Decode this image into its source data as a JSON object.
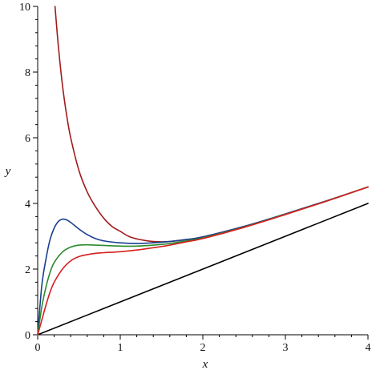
{
  "chart_data": {
    "type": "line",
    "xlabel": "x",
    "ylabel": "y",
    "xlim": [
      0,
      4
    ],
    "ylim": [
      0,
      10
    ],
    "x_ticks": [
      "0",
      "1",
      "2",
      "3",
      "4"
    ],
    "y_ticks": [
      "0",
      "2",
      "4",
      "6",
      "8",
      "10"
    ],
    "grid": false,
    "series": [
      {
        "color": "#000000",
        "x": [
          0,
          1,
          2,
          3,
          4
        ],
        "y": [
          0,
          1,
          2,
          3,
          4
        ]
      },
      {
        "color": "#a01b1b",
        "x": [
          0.21,
          0.25,
          0.3,
          0.35,
          0.4,
          0.5,
          0.6,
          0.7,
          0.8,
          0.9,
          1.0,
          1.1,
          1.2,
          1.3,
          1.4,
          1.5,
          1.6,
          1.8,
          2.0,
          2.5,
          3.0,
          3.5,
          4.0
        ],
        "y": [
          10.0,
          8.8,
          7.6,
          6.7,
          6.0,
          5.0,
          4.35,
          3.9,
          3.55,
          3.3,
          3.15,
          3.0,
          2.92,
          2.87,
          2.84,
          2.83,
          2.84,
          2.9,
          2.98,
          3.3,
          3.68,
          4.08,
          4.5
        ]
      },
      {
        "color": "#1a3f8f",
        "x": [
          0,
          0.05,
          0.1,
          0.15,
          0.2,
          0.25,
          0.3,
          0.35,
          0.4,
          0.5,
          0.6,
          0.7,
          0.8,
          1.0,
          1.2,
          1.4,
          1.6,
          1.8,
          2.0,
          2.5,
          3.0,
          3.5,
          4.0
        ],
        "y": [
          0,
          1.5,
          2.3,
          2.9,
          3.25,
          3.45,
          3.52,
          3.5,
          3.42,
          3.22,
          3.05,
          2.93,
          2.86,
          2.8,
          2.78,
          2.8,
          2.84,
          2.9,
          2.98,
          3.3,
          3.68,
          4.08,
          4.5
        ]
      },
      {
        "color": "#2a8a2a",
        "x": [
          0,
          0.05,
          0.1,
          0.15,
          0.2,
          0.3,
          0.4,
          0.5,
          0.6,
          0.7,
          0.8,
          1.0,
          1.2,
          1.4,
          1.6,
          1.8,
          2.0,
          2.5,
          3.0,
          3.5,
          4.0
        ],
        "y": [
          0,
          0.85,
          1.45,
          1.9,
          2.2,
          2.52,
          2.67,
          2.73,
          2.74,
          2.73,
          2.72,
          2.7,
          2.7,
          2.73,
          2.78,
          2.86,
          2.95,
          3.28,
          3.67,
          4.07,
          4.5
        ]
      },
      {
        "color": "#d42020",
        "x": [
          0,
          0.05,
          0.1,
          0.15,
          0.2,
          0.3,
          0.4,
          0.5,
          0.6,
          0.7,
          0.8,
          1.0,
          1.2,
          1.4,
          1.6,
          1.8,
          2.0,
          2.5,
          3.0,
          3.5,
          4.0
        ],
        "y": [
          0,
          0.45,
          0.9,
          1.3,
          1.6,
          2.0,
          2.25,
          2.38,
          2.44,
          2.48,
          2.5,
          2.53,
          2.58,
          2.65,
          2.73,
          2.83,
          2.93,
          3.27,
          3.66,
          4.07,
          4.5
        ]
      }
    ]
  }
}
